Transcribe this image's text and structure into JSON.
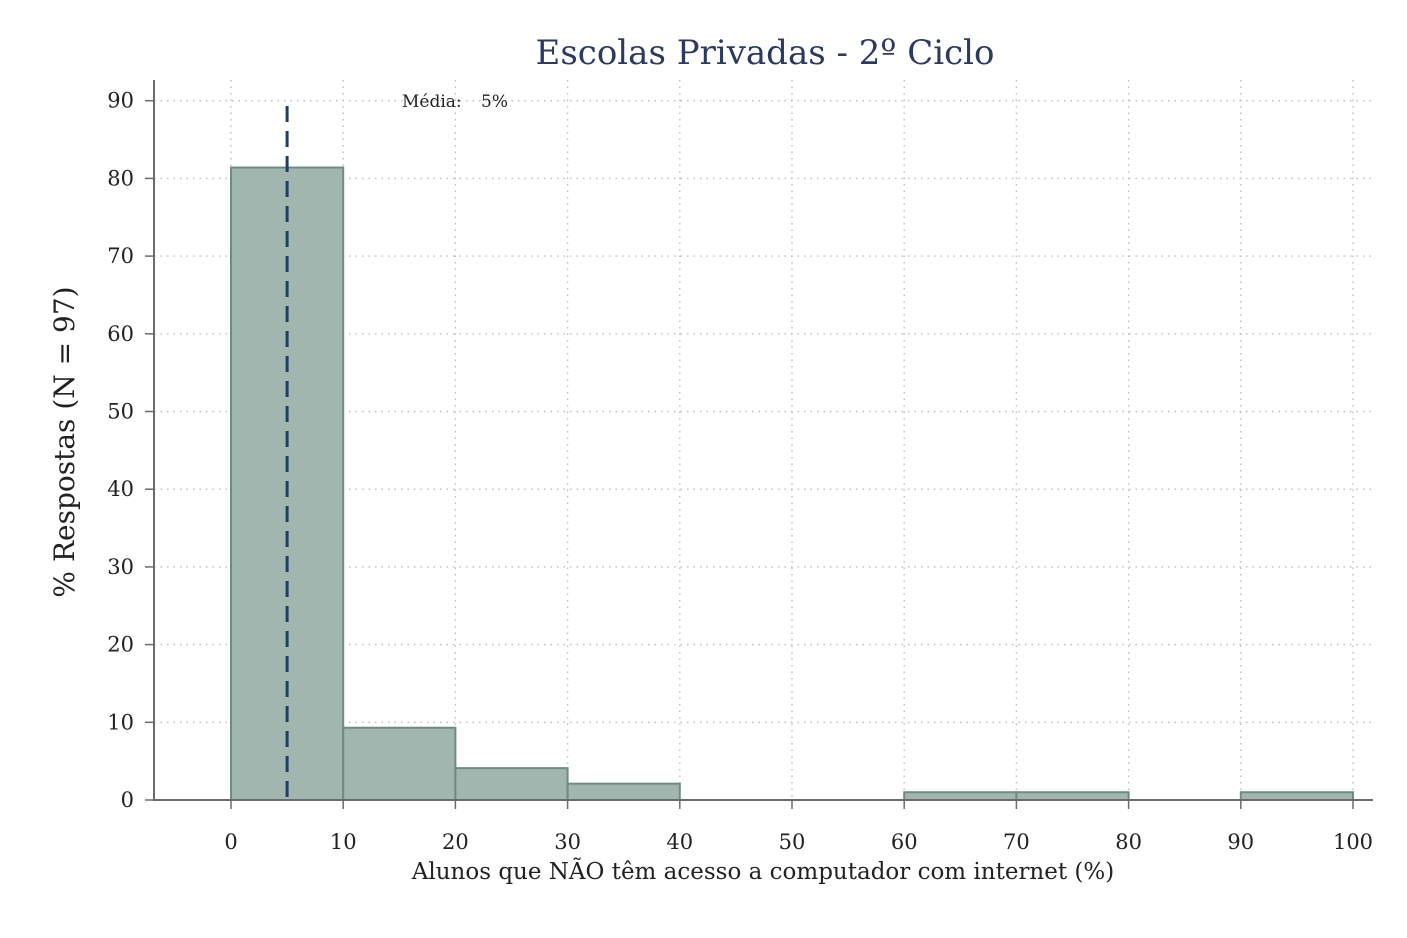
{
  "chart_data": {
    "type": "bar",
    "title": "Escolas Privadas - 2º Ciclo",
    "xlabel": "Alunos que NÃO têm acesso a computador com internet (%)",
    "ylabel": "% Respostas (N =  97)",
    "xlim": [
      -7,
      102
    ],
    "ylim": [
      0,
      92
    ],
    "xticks": [
      0,
      10,
      20,
      30,
      40,
      50,
      60,
      70,
      80,
      90,
      100
    ],
    "yticks": [
      0,
      10,
      20,
      30,
      40,
      50,
      60,
      70,
      80,
      90
    ],
    "grid": true,
    "bins": [
      {
        "from": 0,
        "to": 10,
        "value": 81.4
      },
      {
        "from": 10,
        "to": 20,
        "value": 9.3
      },
      {
        "from": 20,
        "to": 30,
        "value": 4.1
      },
      {
        "from": 30,
        "to": 40,
        "value": 2.1
      },
      {
        "from": 40,
        "to": 50,
        "value": 0
      },
      {
        "from": 50,
        "to": 60,
        "value": 0
      },
      {
        "from": 60,
        "to": 70,
        "value": 1.0
      },
      {
        "from": 70,
        "to": 80,
        "value": 1.0
      },
      {
        "from": 80,
        "to": 90,
        "value": 0
      },
      {
        "from": 90,
        "to": 100,
        "value": 1.0
      }
    ],
    "mean": {
      "value": 5,
      "label": "Média:",
      "value_text": "5%"
    },
    "colors": {
      "bar_fill": "#a1b6af",
      "bar_stroke": "#6e8c82",
      "mean_line": "#1f3f63",
      "title": "#2b3a5e",
      "axis": "#6b6b6b",
      "grid": "#bdbdbd"
    }
  }
}
